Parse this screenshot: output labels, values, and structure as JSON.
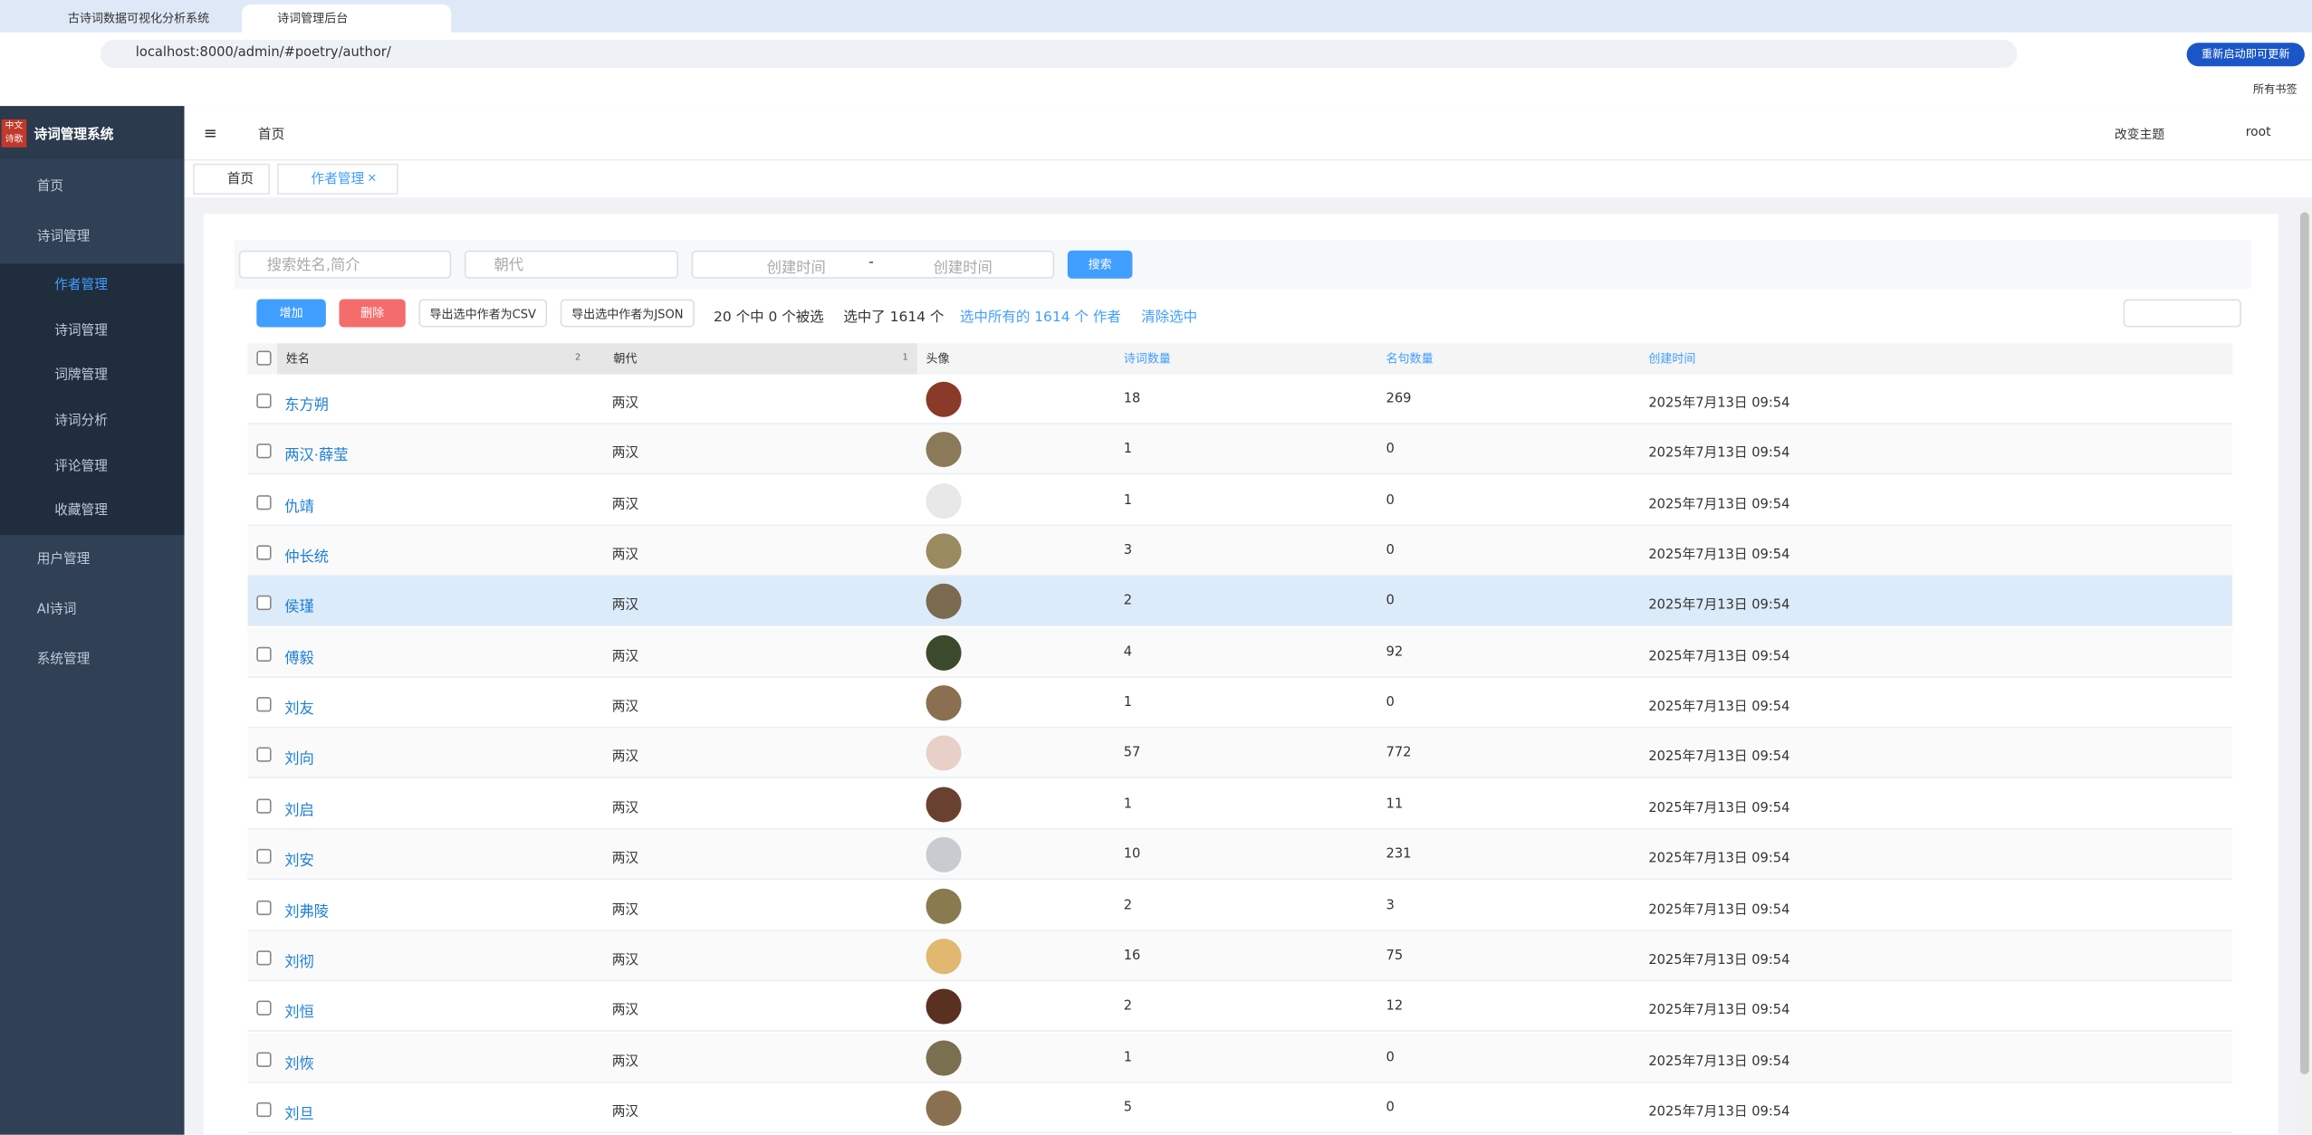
{
  "browser": {
    "tabs": [
      "古诗词数据可视化分析系统",
      "诗词管理后台"
    ],
    "url": "localhost:8000/admin/#poetry/author/",
    "update_button": "重新启动即可更新",
    "bookmarks": "所有书签"
  },
  "sidebar": {
    "logo_text": "中文诗歌",
    "title": "诗词管理系统",
    "menu": [
      {
        "label": "首页"
      },
      {
        "label": "诗词管理",
        "children": [
          "作者管理",
          "诗词管理",
          "词牌管理",
          "诗词分析",
          "评论管理",
          "收藏管理"
        ]
      },
      {
        "label": "用户管理"
      },
      {
        "label": "AI诗词"
      },
      {
        "label": "系统管理"
      }
    ]
  },
  "header": {
    "breadcrumb": "首页",
    "theme": "改变主题",
    "user": "root"
  },
  "page_tabs": [
    "首页",
    "作者管理"
  ],
  "search": {
    "keyword_placeholder": "搜索姓名,简介",
    "dynasty_placeholder": "朝代",
    "date_start": "创建时间",
    "date_sep": "-",
    "date_end": "创建时间",
    "button": "搜索"
  },
  "toolbar": {
    "add": "增加",
    "delete": "删除",
    "export_csv": "导出选中作者为CSV",
    "export_json": "导出选中作者为JSON",
    "selected_count": "20 个中 0 个被选",
    "selected_total": "选中了 1614 个",
    "select_all": "选中所有的 1614 个 作者",
    "clear": "清除选中"
  },
  "table": {
    "columns": [
      {
        "label": "姓名",
        "sort": "2"
      },
      {
        "label": "朝代",
        "sort": "1"
      },
      {
        "label": "头像"
      },
      {
        "label": "诗词数量"
      },
      {
        "label": "名句数量"
      },
      {
        "label": "创建时间"
      }
    ],
    "rows": [
      [
        "东方朔",
        "两汉",
        "18",
        "269",
        "2025年7月13日 09:54"
      ],
      [
        "两汉·薛莹",
        "两汉",
        "1",
        "0",
        "2025年7月13日 09:54"
      ],
      [
        "仇靖",
        "两汉",
        "1",
        "0",
        "2025年7月13日 09:54"
      ],
      [
        "仲长统",
        "两汉",
        "3",
        "0",
        "2025年7月13日 09:54"
      ],
      [
        "侯瑾",
        "两汉",
        "2",
        "0",
        "2025年7月13日 09:54"
      ],
      [
        "傅毅",
        "两汉",
        "4",
        "92",
        "2025年7月13日 09:54"
      ],
      [
        "刘友",
        "两汉",
        "1",
        "0",
        "2025年7月13日 09:54"
      ],
      [
        "刘向",
        "两汉",
        "57",
        "772",
        "2025年7月13日 09:54"
      ],
      [
        "刘启",
        "两汉",
        "1",
        "11",
        "2025年7月13日 09:54"
      ],
      [
        "刘安",
        "两汉",
        "10",
        "231",
        "2025年7月13日 09:54"
      ],
      [
        "刘弗陵",
        "两汉",
        "2",
        "3",
        "2025年7月13日 09:54"
      ],
      [
        "刘彻",
        "两汉",
        "16",
        "75",
        "2025年7月13日 09:54"
      ],
      [
        "刘恒",
        "两汉",
        "2",
        "12",
        "2025年7月13日 09:54"
      ],
      [
        "刘恢",
        "两汉",
        "1",
        "0",
        "2025年7月13日 09:54"
      ],
      [
        "刘旦",
        "两汉",
        "5",
        "0",
        "2025年7月13日 09:54"
      ]
    ]
  }
}
